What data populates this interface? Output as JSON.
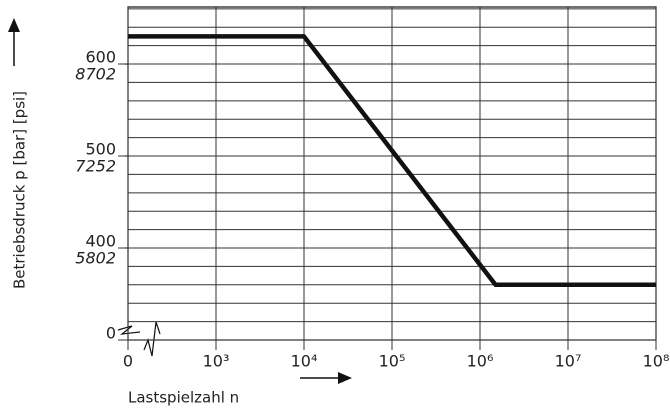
{
  "chart_data": {
    "type": "line",
    "x_label": "Lastspielzahl n",
    "y_label": "Betriebsdruck p [bar] [psi]",
    "log_x": true,
    "xlim": [
      100,
      100000000
    ],
    "xticks": [
      {
        "value": 100,
        "label": "0"
      },
      {
        "value": 1000,
        "label": "10³"
      },
      {
        "value": 10000,
        "label": "10⁴"
      },
      {
        "value": 100000,
        "label": "10⁵"
      },
      {
        "value": 1000000,
        "label": "10⁶"
      },
      {
        "value": 10000000,
        "label": "10⁷"
      },
      {
        "value": 100000000,
        "label": "10⁸"
      }
    ],
    "ylim": [
      300,
      662
    ],
    "yticks": [
      {
        "value": 300,
        "label": "0"
      },
      400,
      500,
      600
    ],
    "y_minor_grid": [
      320,
      340,
      360,
      380,
      420,
      440,
      460,
      480,
      520,
      540,
      560,
      580,
      620,
      640,
      660
    ],
    "y2lim": [
      4351,
      9602
    ],
    "y2ticks": [
      5802,
      7252,
      8702
    ],
    "grid": true,
    "series": [
      {
        "color": "#111111",
        "x": [
          100,
          10000,
          1500000,
          100000000
        ],
        "values": [
          630,
          630,
          360,
          360
        ]
      }
    ]
  }
}
